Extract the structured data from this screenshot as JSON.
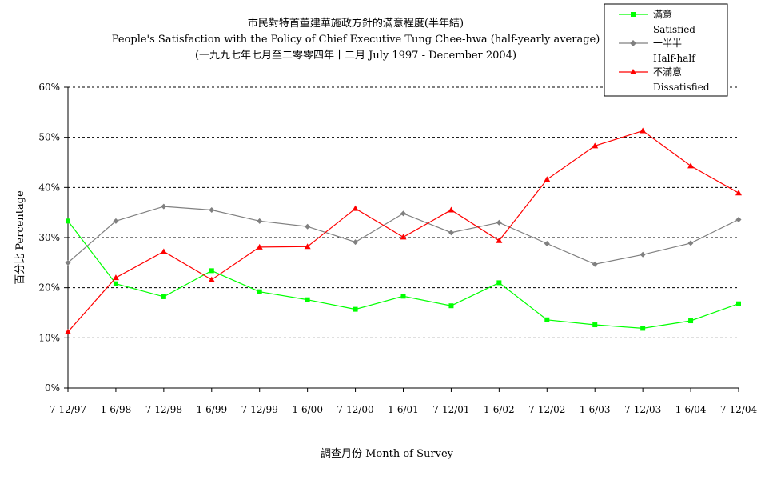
{
  "chart_data": {
    "type": "line",
    "title": "市民對特首董建華施政方針的滿意程度(半年結)",
    "subtitle": "People's Satisfaction with the Policy of Chief Executive Tung Chee-hwa (half-yearly average)",
    "period": "(一九九七年七月至二零零四年十二月 July 1997 - December 2004)",
    "xlabel": "調查月份 Month of Survey",
    "ylabel": "百分比 Percentage",
    "categories": [
      "7-12/97",
      "1-6/98",
      "7-12/98",
      "1-6/99",
      "7-12/99",
      "1-6/00",
      "7-12/00",
      "1-6/01",
      "7-12/01",
      "1-6/02",
      "7-12/02",
      "1-6/03",
      "7-12/03",
      "1-6/04",
      "7-12/04"
    ],
    "ylim": [
      0,
      60
    ],
    "yticks": [
      "0%",
      "10%",
      "20%",
      "30%",
      "40%",
      "50%",
      "60%"
    ],
    "grid": true,
    "legend_position": "top-right",
    "series": [
      {
        "name": "滿意",
        "name_en": "Satisfied",
        "color": "#00ff00",
        "marker": "square",
        "values": [
          33.3,
          20.8,
          18.2,
          23.4,
          19.2,
          17.6,
          15.7,
          18.3,
          16.4,
          21.0,
          13.6,
          12.6,
          11.9,
          13.4,
          16.8
        ]
      },
      {
        "name": "一半半",
        "name_en": "Half-half",
        "color": "#808080",
        "marker": "diamond",
        "values": [
          25.0,
          33.3,
          36.2,
          35.5,
          33.3,
          32.2,
          29.1,
          34.8,
          31.0,
          33.0,
          28.8,
          24.7,
          26.6,
          28.9,
          33.6
        ]
      },
      {
        "name": "不滿意",
        "name_en": "Dissatisfied",
        "color": "#ff0000",
        "marker": "triangle",
        "values": [
          11.2,
          22.0,
          27.2,
          21.6,
          28.1,
          28.2,
          35.8,
          30.1,
          35.5,
          29.4,
          41.6,
          48.3,
          51.3,
          44.3,
          38.9
        ]
      }
    ]
  }
}
